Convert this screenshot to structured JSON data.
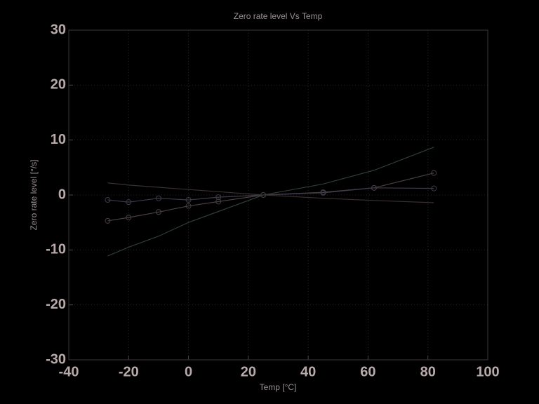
{
  "chart_data": {
    "type": "line",
    "title": "Zero rate level Vs Temp",
    "x_label": "Temp [°C]",
    "y_label": "Zero rate level [°/s]",
    "x": [
      -27,
      -20,
      -10,
      0,
      10,
      25,
      45,
      62,
      82
    ],
    "series": [
      {
        "color": "#4a4040",
        "marker": "o",
        "values": [
          -4.7,
          -4.1,
          -3.1,
          -2.0,
          -1.2,
          0,
          0.5,
          1.3,
          4.0
        ]
      },
      {
        "color": "#403a4a",
        "marker": "o",
        "values": [
          -0.9,
          -1.3,
          -0.6,
          -0.9,
          -0.4,
          0,
          0.4,
          1.3,
          1.2
        ]
      },
      {
        "color": "#2e3e34",
        "marker": "none",
        "values": [
          -11.1,
          -9.5,
          -7.5,
          -5.0,
          -3.0,
          0,
          2.0,
          4.5,
          8.7
        ]
      },
      {
        "color": "#3a3030",
        "marker": "none",
        "values": [
          2.2,
          1.8,
          1.4,
          1.0,
          0.6,
          0,
          -0.6,
          -1.0,
          -1.4
        ]
      }
    ],
    "xlim": [
      -40,
      100
    ],
    "xticks": [
      -40,
      -20,
      0,
      20,
      40,
      60,
      80,
      100
    ],
    "ylim": [
      -30,
      30
    ],
    "yticks": [
      -30,
      -20,
      -10,
      0,
      10,
      20,
      30
    ],
    "grid": true
  }
}
